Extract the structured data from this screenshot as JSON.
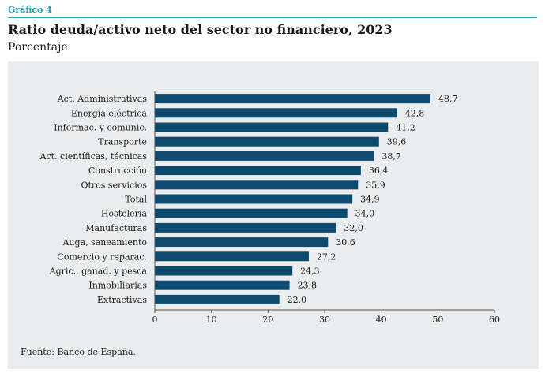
{
  "header": {
    "figure_label": "Gráfico 4",
    "title": "Ratio deuda/activo neto del sector no financiero, 2023",
    "subtitle": "Porcentaje"
  },
  "footer": {
    "source": "Fuente: Banco de España."
  },
  "colors": {
    "bar": "#0d4a6e",
    "accent": "#2a9fb8",
    "panel": "#ebeced"
  },
  "chart_data": {
    "type": "bar",
    "orientation": "horizontal",
    "categories": [
      "Act. Administrativas",
      "Energía eléctrica",
      "Informac. y comunic.",
      "Transporte",
      "Act. científicas, técnicas",
      "Construcción",
      "Otros servicios",
      "Total",
      "Hostelería",
      "Manufacturas",
      "Auga, saneamiento",
      "Comercio y reparac.",
      "Agric., ganad. y pesca",
      "Inmobiliarias",
      "Extractivas"
    ],
    "values": [
      48.7,
      42.8,
      41.2,
      39.6,
      38.7,
      36.4,
      35.9,
      34.9,
      34.0,
      32.0,
      30.6,
      27.2,
      24.3,
      23.8,
      22.0
    ],
    "value_labels": [
      "48,7",
      "42,8",
      "41,2",
      "39,6",
      "38,7",
      "36,4",
      "35,9",
      "34,9",
      "34,0",
      "32,0",
      "30,6",
      "27,2",
      "24,3",
      "23,8",
      "22,0"
    ],
    "xlim": [
      0,
      60
    ],
    "xticks": [
      0,
      10,
      20,
      30,
      40,
      50,
      60
    ],
    "grid": false,
    "legend": "none"
  }
}
